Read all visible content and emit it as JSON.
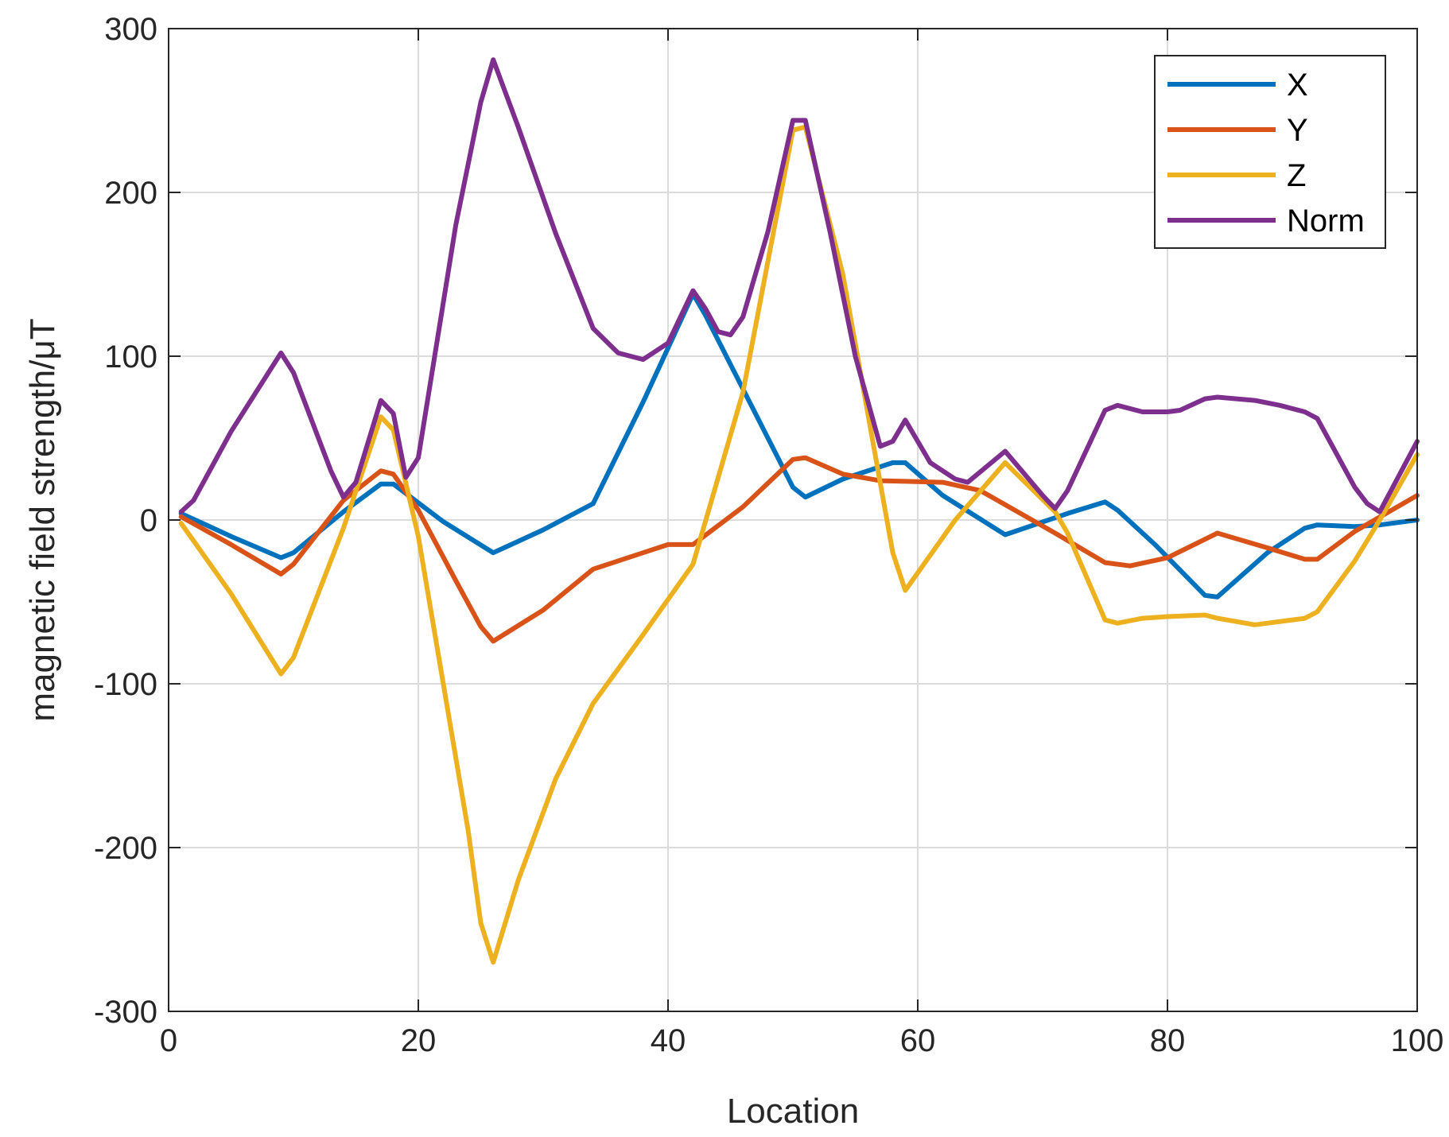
{
  "chart_data": {
    "type": "line",
    "xlabel": "Location",
    "ylabel": "magnetic field strength/μT",
    "xlim": [
      0,
      100
    ],
    "ylim": [
      -300,
      300
    ],
    "xticks": [
      0,
      20,
      40,
      60,
      80,
      100
    ],
    "yticks": [
      -300,
      -200,
      -100,
      0,
      100,
      200,
      300
    ],
    "xtick_labels": [
      "0",
      "20",
      "40",
      "60",
      "80",
      "100"
    ],
    "ytick_labels": [
      "-300",
      "-200",
      "-100",
      "0",
      "100",
      "200",
      "300"
    ],
    "grid": true,
    "legend_position": "top-right",
    "series": [
      {
        "name": "X",
        "color": "#0072BD",
        "x": [
          1,
          5,
          9,
          10,
          14,
          17,
          18,
          22,
          26,
          30,
          34,
          38,
          42,
          43,
          46,
          50,
          51,
          54,
          58,
          59,
          62,
          67,
          72,
          75,
          76,
          79,
          83,
          84,
          88,
          91,
          92,
          95,
          97,
          100
        ],
        "y": [
          4,
          -10,
          -23,
          -20,
          5,
          22,
          22,
          -1,
          -20,
          -6,
          10,
          72,
          138,
          125,
          80,
          20,
          14,
          25,
          35,
          35,
          15,
          -9,
          4,
          11,
          6,
          -15,
          -46,
          -47,
          -20,
          -5,
          -3,
          -4,
          -3,
          0
        ]
      },
      {
        "name": "Y",
        "color": "#D95319",
        "x": [
          1,
          5,
          9,
          10,
          14,
          17,
          18,
          20,
          23,
          25,
          26,
          30,
          34,
          38,
          40,
          42,
          46,
          50,
          51,
          54,
          57,
          62,
          65,
          68,
          71,
          75,
          77,
          80,
          84,
          88,
          91,
          92,
          95,
          100
        ],
        "y": [
          2,
          -15,
          -33,
          -27,
          12,
          30,
          28,
          6,
          -37,
          -65,
          -74,
          -55,
          -30,
          -20,
          -15,
          -15,
          8,
          37,
          38,
          28,
          24,
          23,
          18,
          5,
          -8,
          -26,
          -28,
          -23,
          -8,
          -17,
          -24,
          -24,
          -7,
          15
        ]
      },
      {
        "name": "Z",
        "color": "#EDB120",
        "x": [
          1,
          5,
          9,
          10,
          14,
          17,
          18,
          20,
          24,
          25,
          26,
          28,
          31,
          34,
          38,
          42,
          46,
          50,
          51,
          54,
          56,
          58,
          59,
          63,
          67,
          71,
          72,
          75,
          76,
          78,
          80,
          83,
          84,
          87,
          91,
          92,
          95,
          97,
          100
        ],
        "y": [
          -2,
          -45,
          -94,
          -84,
          -5,
          63,
          55,
          -10,
          -190,
          -246,
          -270,
          -220,
          -158,
          -112,
          -70,
          -27,
          78,
          238,
          240,
          150,
          65,
          -20,
          -43,
          0,
          35,
          5,
          -8,
          -61,
          -63,
          -60,
          -59,
          -58,
          -60,
          -64,
          -60,
          -56,
          -25,
          0,
          40
        ]
      },
      {
        "name": "Norm",
        "color": "#7E2F8E",
        "x": [
          1,
          2,
          5,
          9,
          10,
          13,
          14,
          15,
          17,
          18,
          19,
          20,
          23,
          25,
          26,
          28,
          31,
          34,
          36,
          38,
          40,
          42,
          43,
          44,
          45,
          46,
          48,
          50,
          51,
          53,
          55,
          57,
          58,
          59,
          61,
          63,
          64,
          67,
          70,
          71,
          72,
          75,
          76,
          78,
          80,
          81,
          83,
          84,
          87,
          89,
          91,
          92,
          95,
          96,
          97,
          100
        ],
        "y": [
          5,
          12,
          54,
          102,
          90,
          30,
          14,
          23,
          73,
          65,
          26,
          38,
          180,
          255,
          281,
          240,
          175,
          117,
          102,
          98,
          108,
          140,
          129,
          115,
          113,
          124,
          176,
          244,
          244,
          175,
          100,
          45,
          48,
          61,
          35,
          25,
          23,
          42,
          15,
          7,
          18,
          67,
          70,
          66,
          66,
          67,
          74,
          75,
          73,
          70,
          66,
          62,
          20,
          10,
          5,
          48
        ]
      }
    ]
  }
}
